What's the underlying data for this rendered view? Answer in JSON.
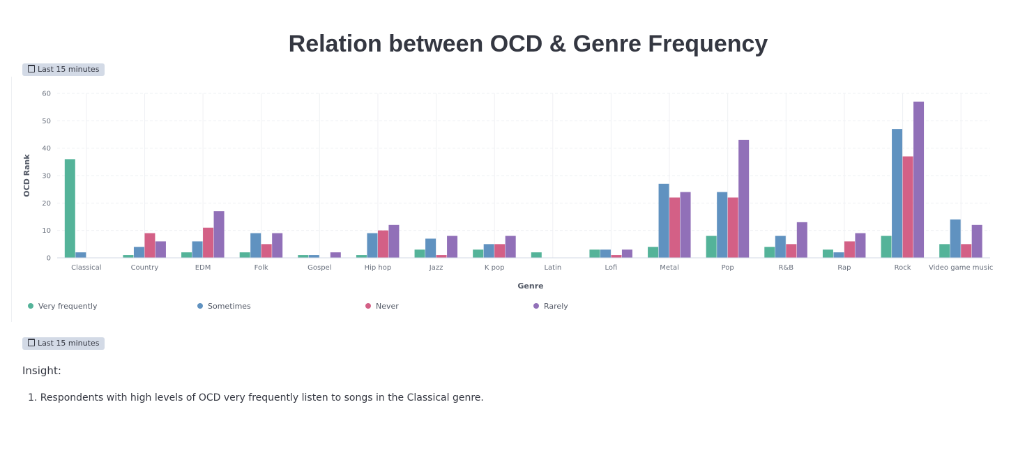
{
  "title": "Relation between OCD & Genre Frequency",
  "time_badge_top": "Last 15 minutes",
  "time_badge_bottom": "Last 15 minutes",
  "insight": {
    "heading": "Insight:",
    "items": [
      "1. Respondents with high levels of OCD very frequently listen to songs in the Classical genre."
    ]
  },
  "chart_data": {
    "type": "bar",
    "title": "Relation between OCD & Genre Frequency",
    "xlabel": "Genre",
    "ylabel": "OCD Rank",
    "ylim": [
      0,
      60
    ],
    "yticks": [
      0,
      10,
      20,
      30,
      40,
      50,
      60
    ],
    "grid": true,
    "legend_position": "bottom",
    "categories": [
      "Classical",
      "Country",
      "EDM",
      "Folk",
      "Gospel",
      "Hip hop",
      "Jazz",
      "K pop",
      "Latin",
      "Lofi",
      "Metal",
      "Pop",
      "R&B",
      "Rap",
      "Rock",
      "Video game music"
    ],
    "series": [
      {
        "name": "Very frequently",
        "color": "#54b399",
        "values": [
          36,
          1,
          2,
          2,
          1,
          1,
          3,
          3,
          2,
          3,
          4,
          8,
          4,
          3,
          8,
          5
        ]
      },
      {
        "name": "Sometimes",
        "color": "#6092c0",
        "values": [
          2,
          4,
          6,
          9,
          1,
          9,
          7,
          5,
          0,
          3,
          27,
          24,
          8,
          2,
          47,
          14
        ]
      },
      {
        "name": "Never",
        "color": "#d36086",
        "values": [
          0,
          9,
          11,
          5,
          0,
          10,
          1,
          5,
          0,
          1,
          22,
          22,
          5,
          6,
          37,
          5
        ]
      },
      {
        "name": "Rarely",
        "color": "#9170b8",
        "values": [
          0,
          6,
          17,
          9,
          2,
          12,
          8,
          8,
          0,
          3,
          24,
          43,
          13,
          9,
          57,
          12
        ]
      }
    ]
  }
}
